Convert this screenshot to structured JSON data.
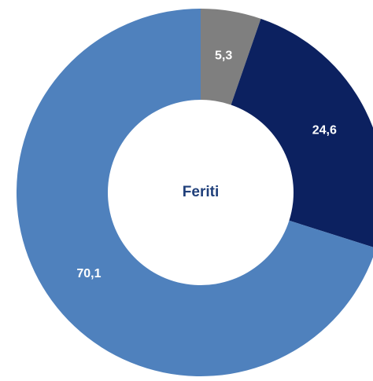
{
  "chart_data": {
    "type": "donut",
    "title": "Feriti",
    "values": [
      5.3,
      24.6,
      70.1
    ],
    "value_labels": [
      "5,3",
      "24,6",
      "70,1"
    ],
    "colors": [
      "#7f7f7f",
      "#0c2160",
      "#4f81bd"
    ]
  }
}
